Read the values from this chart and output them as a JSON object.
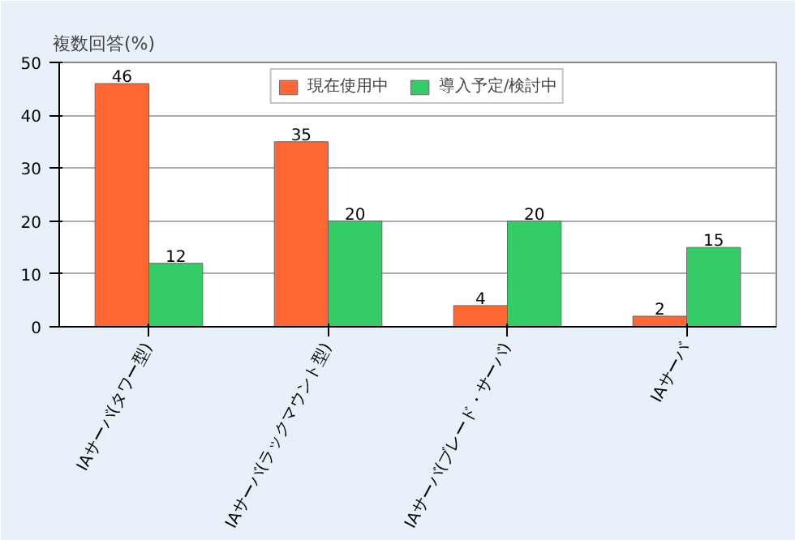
{
  "chart_data": {
    "type": "bar",
    "ylabel": "複数回答(%)",
    "categories": [
      "IAサーバ(タワー型)",
      "IAサーバ(ラックマウント型)",
      "IAサーバ(ブレード・サーバ)",
      "IAサーバ"
    ],
    "series": [
      {
        "name": "現在使用中",
        "color": "#ff6633",
        "values": [
          46,
          35,
          4,
          2
        ]
      },
      {
        "name": "導入予定/検討中",
        "color": "#33cc66",
        "values": [
          12,
          20,
          20,
          15
        ]
      }
    ],
    "ylim": [
      0,
      50
    ],
    "yticks": [
      0,
      10,
      20,
      30,
      40,
      50
    ],
    "grid": "y",
    "legend": "top",
    "data_labels": true
  }
}
